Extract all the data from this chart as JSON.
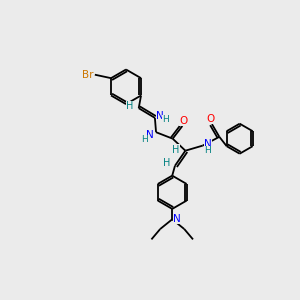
{
  "background_color": "#ebebeb",
  "bond_color": "#000000",
  "figsize": [
    3.0,
    3.0
  ],
  "dpi": 100,
  "atom_colors": {
    "Br": "#cc7700",
    "N": "#0000ff",
    "O": "#ff0000",
    "H": "#008080"
  },
  "xlim": [
    0,
    10
  ],
  "ylim": [
    0,
    10
  ]
}
